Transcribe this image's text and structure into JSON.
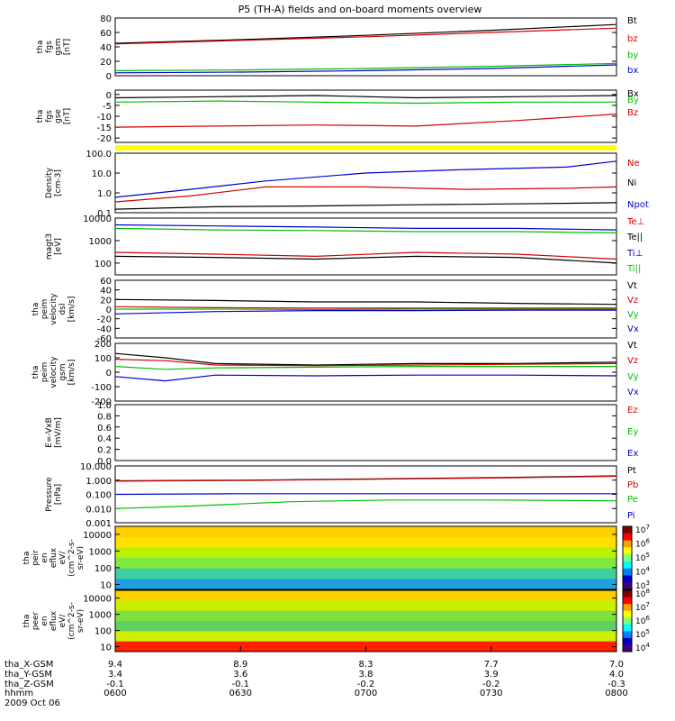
{
  "title": "P5 (TH-A) fields and on-board moments overview",
  "chart_data": {
    "type": "line",
    "title": "P5 (TH-A) fields and on-board moments overview",
    "x_axis": {
      "time_ticks": [
        "0600",
        "0630",
        "0700",
        "0730",
        "0800"
      ],
      "rows": [
        {
          "label": "tha_X-GSM",
          "values": [
            "9.4",
            "8.9",
            "8.3",
            "7.7",
            "7.0"
          ]
        },
        {
          "label": "tha_Y-GSM",
          "values": [
            "3.4",
            "3.6",
            "3.8",
            "3.9",
            "4.0"
          ]
        },
        {
          "label": "tha_Z-GSM",
          "values": [
            "-0.1",
            "-0.1",
            "-0.2",
            "-0.2",
            "-0.3"
          ]
        },
        {
          "label": "hhmm",
          "values": [
            "0600",
            "0630",
            "0700",
            "0730",
            "0800"
          ]
        }
      ],
      "date": "2009 Oct 06"
    },
    "panels": [
      {
        "ylabel": [
          "tha",
          "fgs",
          "gsm",
          "[nT]"
        ],
        "ticks": [
          "80",
          "60",
          "40",
          "20",
          "0"
        ],
        "ylim": [
          0,
          80
        ],
        "legend": [
          {
            "name": "Bt",
            "color": "#000000"
          },
          {
            "name": "bz",
            "color": "#d40000"
          },
          {
            "name": "by",
            "color": "#00c000"
          },
          {
            "name": "bx",
            "color": "#0000d0"
          }
        ],
        "series": [
          {
            "name": "Bt",
            "color": "#000000",
            "x": [
              0,
              0.25,
              0.5,
              0.75,
              1
            ],
            "y": [
              45,
              50,
              56,
              63,
              71
            ]
          },
          {
            "name": "bz",
            "color": "#d40000",
            "x": [
              0,
              0.25,
              0.5,
              0.75,
              1
            ],
            "y": [
              44,
              49,
              54,
              60,
              66
            ]
          },
          {
            "name": "by",
            "color": "#00c000",
            "x": [
              0,
              0.25,
              0.5,
              0.75,
              1
            ],
            "y": [
              7,
              8,
              10,
              13,
              17
            ]
          },
          {
            "name": "bx",
            "color": "#0000d0",
            "x": [
              0,
              0.25,
              0.5,
              0.75,
              1
            ],
            "y": [
              4,
              5,
              7,
              10,
              15
            ]
          }
        ]
      },
      {
        "ylabel": [
          "tha",
          "fgs",
          "gse",
          "[nT]"
        ],
        "ticks": [
          "0",
          "-5",
          "-10",
          "-15",
          "-20"
        ],
        "ylim": [
          -22,
          2
        ],
        "legend": [
          {
            "name": "Bx",
            "color": "#000000"
          },
          {
            "name": "By",
            "color": "#00c000"
          },
          {
            "name": "Bz",
            "color": "#d40000"
          }
        ],
        "series": [
          {
            "name": "Bx",
            "color": "#000000",
            "x": [
              0,
              0.2,
              0.4,
              0.6,
              0.8,
              1
            ],
            "y": [
              -1.5,
              -1,
              -0.5,
              -1.5,
              -1,
              -0.5
            ]
          },
          {
            "name": "By",
            "color": "#00c000",
            "x": [
              0,
              0.2,
              0.4,
              0.6,
              0.8,
              1
            ],
            "y": [
              -3.5,
              -3,
              -3.5,
              -4,
              -3.5,
              -3.5
            ]
          },
          {
            "name": "Bz",
            "color": "#d40000",
            "x": [
              0,
              0.2,
              0.4,
              0.6,
              0.8,
              1
            ],
            "y": [
              -15,
              -14.5,
              -14,
              -14.5,
              -12,
              -9
            ]
          }
        ]
      },
      {
        "ylabel": [
          "Density",
          "[cm-3]"
        ],
        "ticks": [
          "100.0",
          "10.0",
          "1.0",
          "0.1"
        ],
        "ylim": [
          0.1,
          100
        ],
        "scale": "log",
        "legend": [
          {
            "name": "Ne",
            "color": "#d40000"
          },
          {
            "name": "Ni",
            "color": "#000000"
          },
          {
            "name": "Npot",
            "color": "#0000d0"
          }
        ],
        "series": [
          {
            "name": "Ne",
            "color": "#d40000",
            "x": [
              0,
              0.15,
              0.3,
              0.5,
              0.7,
              0.9,
              1
            ],
            "y": [
              0.35,
              0.7,
              2,
              2,
              1.5,
              1.7,
              2
            ]
          },
          {
            "name": "Ni",
            "color": "#000000",
            "x": [
              0,
              0.2,
              0.4,
              0.6,
              0.8,
              1
            ],
            "y": [
              0.15,
              0.2,
              0.22,
              0.25,
              0.28,
              0.32
            ]
          },
          {
            "name": "Npot",
            "color": "#0000d0",
            "x": [
              0,
              0.15,
              0.3,
              0.5,
              0.7,
              0.9,
              1
            ],
            "y": [
              0.6,
              1.5,
              4,
              10,
              15,
              20,
              40
            ]
          }
        ]
      },
      {
        "ylabel": [
          "magt3",
          "[eV]"
        ],
        "ticks": [
          "10000",
          "1000",
          "100"
        ],
        "ylim": [
          30,
          10000
        ],
        "scale": "log",
        "legend": [
          {
            "name": "Te⊥",
            "color": "#d40000"
          },
          {
            "name": "Te||",
            "color": "#000000"
          },
          {
            "name": "Ti⊥",
            "color": "#0000d0"
          },
          {
            "name": "Ti||",
            "color": "#00c000"
          }
        ],
        "series": [
          {
            "name": "Te⊥",
            "color": "#d40000",
            "x": [
              0,
              0.2,
              0.4,
              0.6,
              0.8,
              1
            ],
            "y": [
              300,
              250,
              200,
              300,
              250,
              150
            ]
          },
          {
            "name": "Te||",
            "color": "#000000",
            "x": [
              0,
              0.2,
              0.4,
              0.6,
              0.8,
              1
            ],
            "y": [
              200,
              180,
              150,
              200,
              180,
              100
            ]
          },
          {
            "name": "Ti⊥",
            "color": "#0000d0",
            "x": [
              0,
              0.2,
              0.4,
              0.6,
              0.8,
              1
            ],
            "y": [
              5000,
              4500,
              4000,
              3500,
              3500,
              3000
            ]
          },
          {
            "name": "Ti||",
            "color": "#00c000",
            "x": [
              0,
              0.2,
              0.4,
              0.6,
              0.8,
              1
            ],
            "y": [
              3500,
              3000,
              2800,
              2500,
              2500,
              2200
            ]
          }
        ]
      },
      {
        "ylabel": [
          "tha",
          "peim",
          "velocity",
          "dsl",
          "[km/s]"
        ],
        "ticks": [
          "60",
          "40",
          "20",
          "0",
          "-20",
          "-40",
          "-60"
        ],
        "ylim": [
          -60,
          60
        ],
        "legend": [
          {
            "name": "Vt",
            "color": "#000000"
          },
          {
            "name": "Vz",
            "color": "#d40000"
          },
          {
            "name": "Vy",
            "color": "#00c000"
          },
          {
            "name": "Vx",
            "color": "#0000d0"
          }
        ],
        "series": [
          {
            "name": "Vt",
            "color": "#000000",
            "x": [
              0,
              0.2,
              0.4,
              0.6,
              0.8,
              1
            ],
            "y": [
              20,
              18,
              15,
              15,
              12,
              10
            ]
          },
          {
            "name": "Vz",
            "color": "#d40000",
            "x": [
              0,
              0.2,
              0.4,
              0.6,
              0.8,
              1
            ],
            "y": [
              5,
              3,
              2,
              2,
              2,
              2
            ]
          },
          {
            "name": "Vy",
            "color": "#00c000",
            "x": [
              0,
              0.2,
              0.4,
              0.6,
              0.8,
              1
            ],
            "y": [
              0,
              0,
              -1,
              0,
              0,
              0
            ]
          },
          {
            "name": "Vx",
            "color": "#0000d0",
            "x": [
              0,
              0.2,
              0.4,
              0.6,
              0.8,
              1
            ],
            "y": [
              -10,
              -5,
              -3,
              -3,
              -2,
              -2
            ]
          }
        ]
      },
      {
        "ylabel": [
          "tha",
          "peim",
          "velocity",
          "gsm",
          "[km/s]"
        ],
        "ticks": [
          "200",
          "100",
          "0",
          "-100",
          "-200"
        ],
        "ylim": [
          -200,
          200
        ],
        "legend": [
          {
            "name": "Vt",
            "color": "#000000"
          },
          {
            "name": "Vz",
            "color": "#d40000"
          },
          {
            "name": "Vy",
            "color": "#00c000"
          },
          {
            "name": "Vx",
            "color": "#0000d0"
          }
        ],
        "series": [
          {
            "name": "Vt",
            "color": "#000000",
            "x": [
              0,
              0.1,
              0.2,
              0.4,
              0.6,
              0.8,
              1
            ],
            "y": [
              130,
              100,
              60,
              50,
              60,
              60,
              70
            ]
          },
          {
            "name": "Vz",
            "color": "#d40000",
            "x": [
              0,
              0.1,
              0.2,
              0.4,
              0.6,
              0.8,
              1
            ],
            "y": [
              90,
              80,
              50,
              45,
              50,
              55,
              60
            ]
          },
          {
            "name": "Vy",
            "color": "#00c000",
            "x": [
              0,
              0.1,
              0.2,
              0.4,
              0.6,
              0.8,
              1
            ],
            "y": [
              40,
              20,
              30,
              35,
              40,
              40,
              40
            ]
          },
          {
            "name": "Vx",
            "color": "#0000d0",
            "x": [
              0,
              0.1,
              0.2,
              0.4,
              0.6,
              0.8,
              1
            ],
            "y": [
              -30,
              -60,
              -20,
              -25,
              -20,
              -20,
              -25
            ]
          }
        ]
      },
      {
        "ylabel": [
          "E=-VxB",
          "[mV/m]"
        ],
        "ticks": [
          "1.0",
          "0.8",
          "0.6",
          "0.4",
          "0.2",
          "0.0"
        ],
        "ylim": [
          0,
          1
        ],
        "legend": [
          {
            "name": "Ez",
            "color": "#d40000"
          },
          {
            "name": "Ey",
            "color": "#00c000"
          },
          {
            "name": "Ex",
            "color": "#0000d0"
          }
        ],
        "series": []
      },
      {
        "ylabel": [
          "Pressure",
          "[nPa]"
        ],
        "ticks": [
          "10.000",
          "1.000",
          "0.100",
          "0.010",
          "0.001"
        ],
        "ylim": [
          0.001,
          10
        ],
        "scale": "log",
        "legend": [
          {
            "name": "Pt",
            "color": "#000000"
          },
          {
            "name": "Pb",
            "color": "#d40000"
          },
          {
            "name": "Pe",
            "color": "#00c000"
          },
          {
            "name": "Pi",
            "color": "#0000d0"
          }
        ],
        "series": [
          {
            "name": "Pt",
            "color": "#000000",
            "x": [
              0,
              0.25,
              0.5,
              0.75,
              1
            ],
            "y": [
              0.9,
              1,
              1.2,
              1.5,
              2
            ]
          },
          {
            "name": "Pb",
            "color": "#d40000",
            "x": [
              0,
              0.25,
              0.5,
              0.75,
              1
            ],
            "y": [
              0.85,
              0.95,
              1.15,
              1.4,
              1.9
            ]
          },
          {
            "name": "Pe",
            "color": "#00c000",
            "x": [
              0,
              0.15,
              0.35,
              0.55,
              0.75,
              1
            ],
            "y": [
              0.01,
              0.015,
              0.03,
              0.04,
              0.04,
              0.035
            ]
          },
          {
            "name": "Pi",
            "color": "#0000d0",
            "x": [
              0,
              0.25,
              0.5,
              0.75,
              1
            ],
            "y": [
              0.1,
              0.11,
              0.11,
              0.11,
              0.11
            ]
          }
        ]
      },
      {
        "ylabel": [
          "tha",
          "peir",
          "en",
          "eflux",
          "eV/",
          "(cm^2-s-",
          "sr-eV)"
        ],
        "ticks": [
          "10000",
          "1000",
          "100",
          "10"
        ],
        "ylim": [
          5,
          30000
        ],
        "scale": "log",
        "colorbar_ticks": [
          "10^7",
          "10^6",
          "10^5",
          "10^4",
          "10^3"
        ],
        "legend": [],
        "series": []
      },
      {
        "ylabel": [
          "tha",
          "peer",
          "en",
          "eflux",
          "eV/",
          "(cm^2-s-",
          "sr-eV)"
        ],
        "ticks": [
          "10000",
          "1000",
          "100",
          "10"
        ],
        "ylim": [
          5,
          30000
        ],
        "scale": "log",
        "colorbar_ticks": [
          "10^8",
          "10^7",
          "10^6",
          "10^5",
          "10^4"
        ],
        "legend": [],
        "series": []
      }
    ]
  }
}
